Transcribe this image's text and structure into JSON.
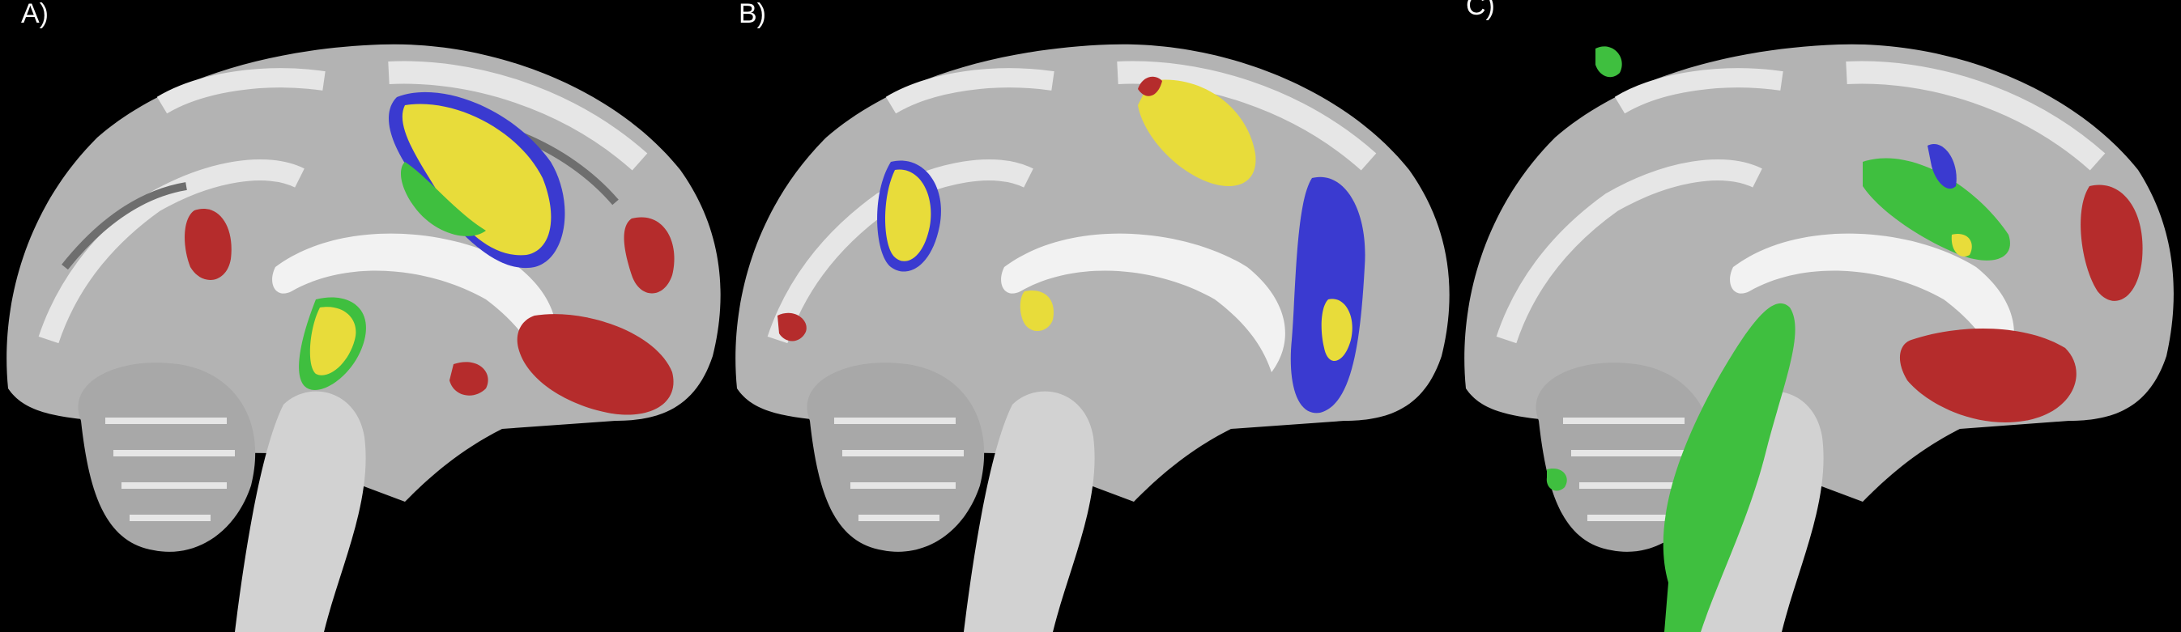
{
  "figure": {
    "background": "#000000",
    "panels": [
      {
        "label": "A)"
      },
      {
        "label": "B)"
      },
      {
        "label": "C)"
      }
    ],
    "overlay_colors": {
      "red": "#b52c2c",
      "yellow": "#e8dc3a",
      "blue": "#3a3ad0",
      "green": "#3fbf3f",
      "brain": "#bdbdbd"
    }
  }
}
